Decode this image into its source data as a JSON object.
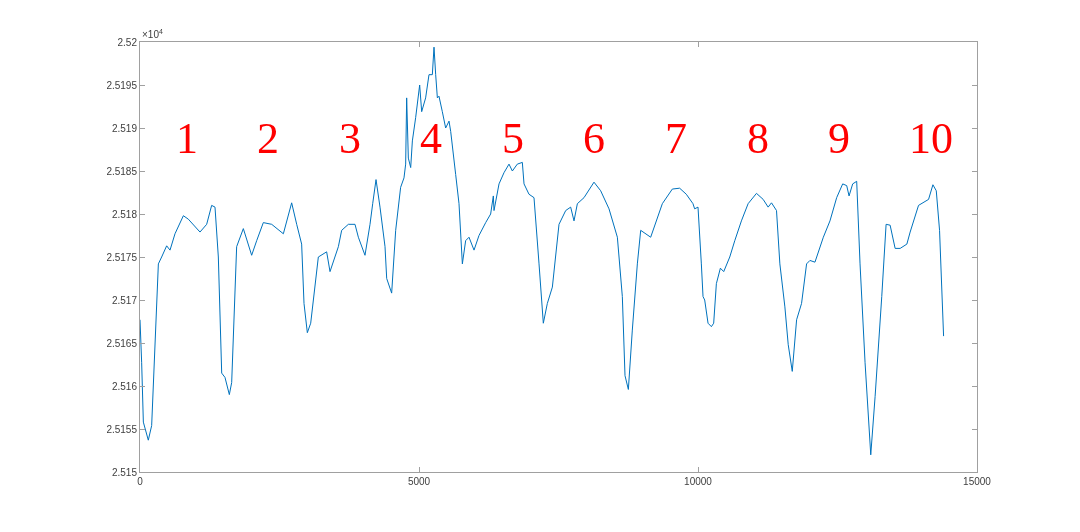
{
  "chart_data": {
    "type": "line",
    "x": [
      0,
      30,
      60,
      149,
      209,
      329,
      388,
      478,
      538,
      627,
      777,
      866,
      1075,
      1195,
      1284,
      1344,
      1404,
      1464,
      1523,
      1601,
      1643,
      1732,
      1852,
      2001,
      2091,
      2210,
      2360,
      2569,
      2718,
      2808,
      2897,
      2939,
      2999,
      3059,
      3196,
      3345,
      3405,
      3555,
      3614,
      3734,
      3853,
      3913,
      4032,
      4122,
      4170,
      4230,
      4301,
      4391,
      4421,
      4510,
      4582,
      4671,
      4731,
      4761,
      4779,
      4809,
      4851,
      4881,
      4940,
      5012,
      5048,
      5119,
      5179,
      5239,
      5269,
      5299,
      5329,
      5358,
      5418,
      5478,
      5538,
      5568,
      5657,
      5717,
      5777,
      5836,
      5896,
      5986,
      6075,
      6195,
      6284,
      6332,
      6344,
      6434,
      6523,
      6613,
      6673,
      6762,
      6852,
      6882,
      6971,
      7061,
      7151,
      7228,
      7300,
      7390,
      7509,
      7629,
      7718,
      7778,
      7838,
      7957,
      8136,
      8256,
      8405,
      8555,
      8644,
      8692,
      8752,
      8823,
      8913,
      8973,
      9152,
      9361,
      9540,
      9671,
      9790,
      9910,
      9940,
      10000,
      10060,
      10090,
      10120,
      10180,
      10240,
      10281,
      10329,
      10401,
      10461,
      10569,
      10659,
      10778,
      10898,
      11048,
      11168,
      11257,
      11317,
      11407,
      11467,
      11557,
      11617,
      11689,
      11767,
      11856,
      11946,
      12006,
      12096,
      12246,
      12365,
      12485,
      12593,
      12665,
      12707,
      12772,
      12844,
      12904,
      12994,
      13096,
      13174,
      13293,
      13371,
      13443,
      13533,
      13623,
      13743,
      13802,
      13952,
      14132,
      14210,
      14270,
      14329,
      14401
    ],
    "series": [
      {
        "color": "#0072bd",
        "values": [
          2.51677,
          2.51627,
          2.51558,
          2.51537,
          2.51554,
          2.51742,
          2.5175,
          2.51763,
          2.51758,
          2.51777,
          2.51798,
          2.51794,
          2.51779,
          2.51788,
          2.5181,
          2.51808,
          2.5175,
          2.51615,
          2.5161,
          2.5159,
          2.51604,
          2.51762,
          2.51783,
          2.51752,
          2.51769,
          2.5179,
          2.51788,
          2.51777,
          2.51813,
          2.51788,
          2.51765,
          2.51696,
          2.51662,
          2.51673,
          2.5175,
          2.51756,
          2.51733,
          2.51762,
          2.51781,
          2.51788,
          2.51788,
          2.51773,
          2.51752,
          2.51788,
          2.51812,
          2.5184,
          2.51808,
          2.51762,
          2.51725,
          2.51708,
          2.51781,
          2.51831,
          2.51842,
          2.51858,
          2.51935,
          2.51865,
          2.51854,
          2.51885,
          2.51912,
          2.5195,
          2.51919,
          2.51935,
          2.51962,
          2.51962,
          2.51994,
          2.51962,
          2.51935,
          2.51937,
          2.51919,
          2.519,
          2.51908,
          2.51896,
          2.51846,
          2.51812,
          2.51742,
          2.51769,
          2.51773,
          2.51758,
          2.51775,
          2.5179,
          2.518,
          2.51821,
          2.51804,
          2.51835,
          2.51848,
          2.51858,
          2.5185,
          2.51858,
          2.5186,
          2.51835,
          2.51823,
          2.51819,
          2.51742,
          2.51673,
          2.51696,
          2.51715,
          2.51788,
          2.51804,
          2.51808,
          2.51792,
          2.51812,
          2.51819,
          2.51837,
          2.51827,
          2.51806,
          2.51773,
          2.51704,
          2.51612,
          2.51596,
          2.51665,
          2.51742,
          2.51781,
          2.51773,
          2.51812,
          2.51829,
          2.5183,
          2.51823,
          2.51812,
          2.51806,
          2.51808,
          2.51742,
          2.51704,
          2.517,
          2.51673,
          2.51669,
          2.51673,
          2.51719,
          2.51737,
          2.51733,
          2.5175,
          2.51769,
          2.51792,
          2.51812,
          2.51824,
          2.51817,
          2.51808,
          2.51813,
          2.51804,
          2.51742,
          2.51692,
          2.51648,
          2.51617,
          2.51677,
          2.51696,
          2.51742,
          2.51746,
          2.51744,
          2.51773,
          2.51792,
          2.51819,
          2.51835,
          2.51833,
          2.51821,
          2.51835,
          2.51838,
          2.51742,
          2.51627,
          2.5152,
          2.51588,
          2.51704,
          2.51788,
          2.51787,
          2.5176,
          2.5176,
          2.51765,
          2.51779,
          2.5181,
          2.51817,
          2.51834,
          2.51827,
          2.51781,
          2.51658
        ]
      }
    ],
    "xlim": [
      0,
      15000
    ],
    "xticks": [
      0,
      5000,
      10000,
      15000
    ],
    "ylim": [
      2.515,
      2.52
    ],
    "yticks": [
      2.515,
      2.5155,
      2.516,
      2.5165,
      2.517,
      2.5175,
      2.518,
      2.5185,
      2.519,
      2.5195,
      2.52
    ],
    "grid": false,
    "marker": "none",
    "line_style": "solid",
    "annotations": [
      "×10$^{4}$",
      "1",
      "2",
      "3",
      "4",
      "5",
      "6",
      "7",
      "8",
      "9",
      "10"
    ]
  }
}
